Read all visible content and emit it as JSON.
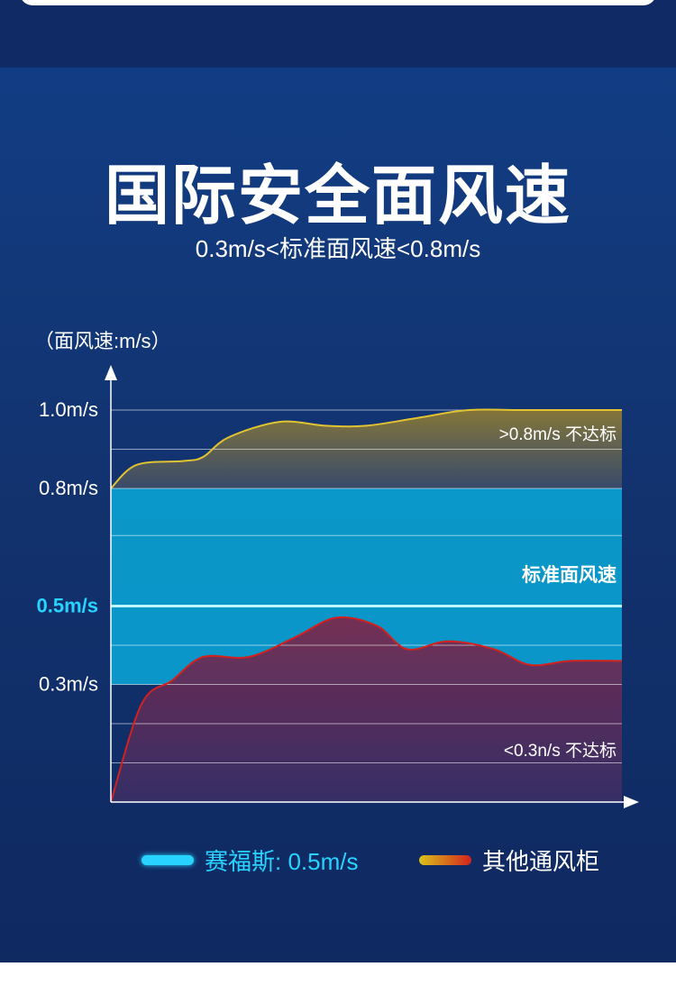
{
  "header": {
    "title": "国际安全面风速",
    "subtitle": "0.3m/s<标准面风速<0.8m/s"
  },
  "chart_data": {
    "type": "area",
    "ylabel": "（面风速:m/s）",
    "ylim": [
      0,
      1.0
    ],
    "y_tick_labels": [
      "1.0m/s",
      "0.8m/s",
      "0.5m/s",
      "0.3m/s"
    ],
    "y_tick_values": [
      1.0,
      0.8,
      0.5,
      0.3
    ],
    "highlight_tick": "0.5m/s",
    "grid": true,
    "standard_band": {
      "min": 0.3,
      "max": 0.8,
      "label": "标准面风速"
    },
    "annotations": {
      "upper": ">0.8m/s 不达标",
      "lower": "<0.3n/s 不达标"
    },
    "series": [
      {
        "name": "赛福斯",
        "legend_label": "赛福斯: 0.5m/s",
        "color": "#28d4ff",
        "x": [
          0,
          1
        ],
        "values": [
          0.5,
          0.5
        ]
      },
      {
        "name": "其他通风柜",
        "legend_label": "其他通风柜",
        "color": "#e0c232",
        "x": [
          0,
          0.05,
          0.14,
          0.18,
          0.23,
          0.33,
          0.42,
          0.5,
          0.6,
          0.7,
          0.8,
          0.9,
          1
        ],
        "values": [
          0.8,
          0.86,
          0.87,
          0.88,
          0.93,
          0.97,
          0.96,
          0.96,
          0.98,
          1.0,
          1.0,
          1.0,
          1.0
        ]
      },
      {
        "name": "其他通风柜",
        "color": "#d3221e",
        "x": [
          0,
          0.06,
          0.12,
          0.18,
          0.27,
          0.36,
          0.44,
          0.52,
          0.58,
          0.66,
          0.75,
          0.82,
          0.9,
          1
        ],
        "values": [
          0.0,
          0.25,
          0.31,
          0.37,
          0.37,
          0.42,
          0.47,
          0.45,
          0.39,
          0.41,
          0.39,
          0.35,
          0.36,
          0.36
        ]
      }
    ],
    "colors": {
      "cyan": "#28d4ff",
      "band": "#0aa0d0",
      "yellow": "#e0c232",
      "red": "#d3221e"
    }
  }
}
